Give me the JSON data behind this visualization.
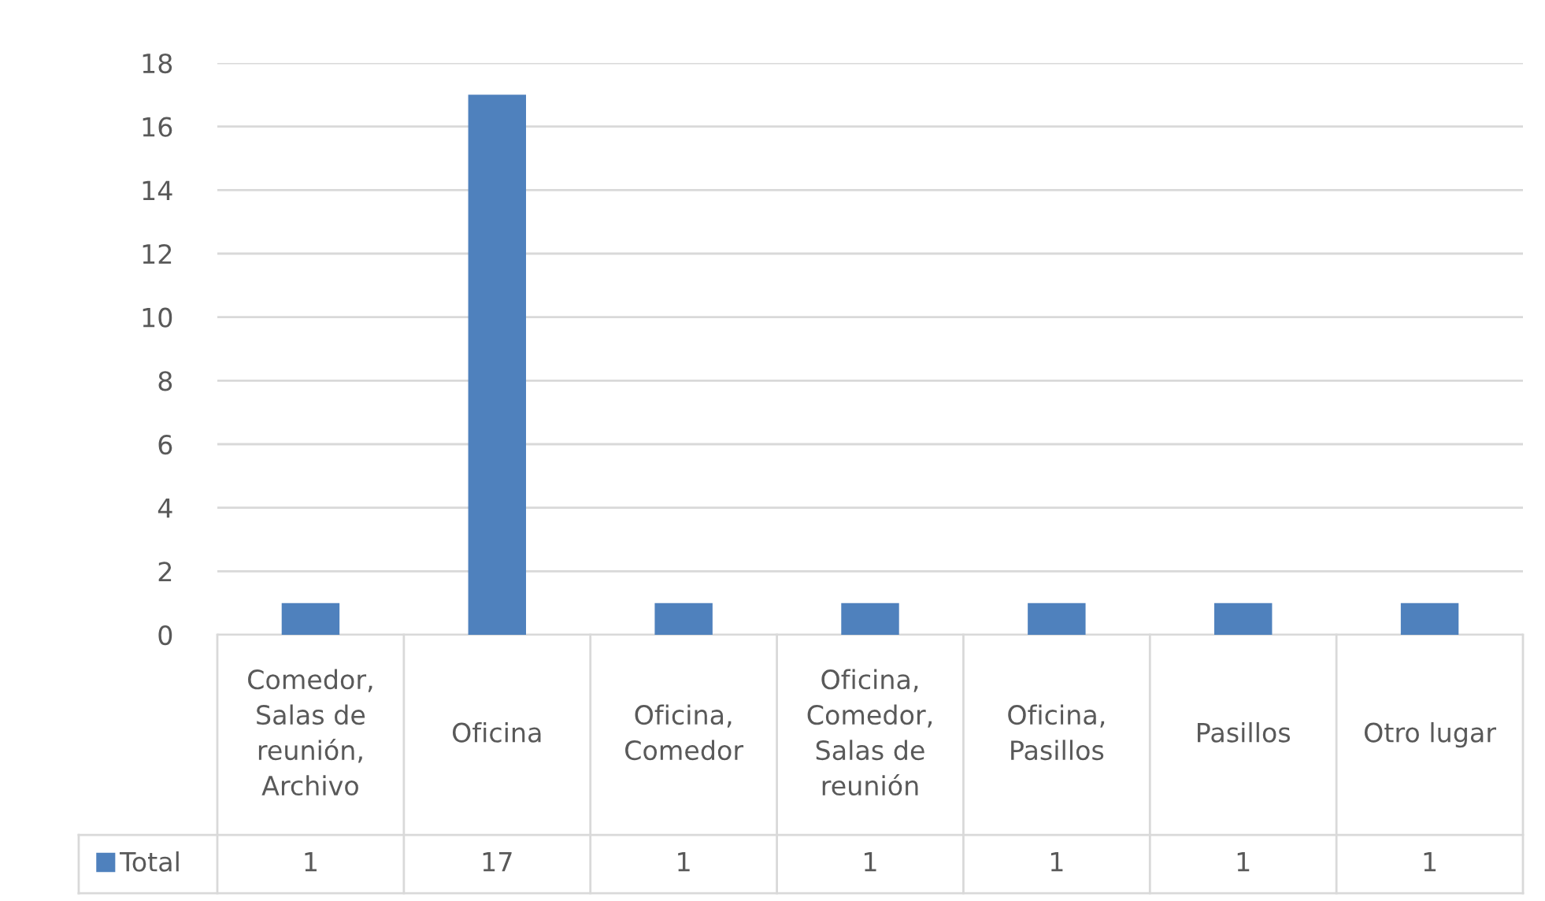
{
  "chart_data": {
    "type": "bar",
    "categories": [
      "Comedor, Salas de reunión, Archivo",
      "Oficina",
      "Oficina, Comedor",
      "Oficina, Comedor, Salas de reunión",
      "Oficina, Pasillos",
      "Pasillos",
      "Otro lugar"
    ],
    "series": [
      {
        "name": "Total",
        "color": "#4f81bd",
        "values": [
          1,
          17,
          1,
          1,
          1,
          1,
          1
        ]
      }
    ],
    "ylim": [
      0,
      18
    ],
    "yticks": [
      0,
      2,
      4,
      6,
      8,
      10,
      12,
      14,
      16,
      18
    ],
    "grid": "y",
    "data_labels": true,
    "legend": "bottom"
  }
}
